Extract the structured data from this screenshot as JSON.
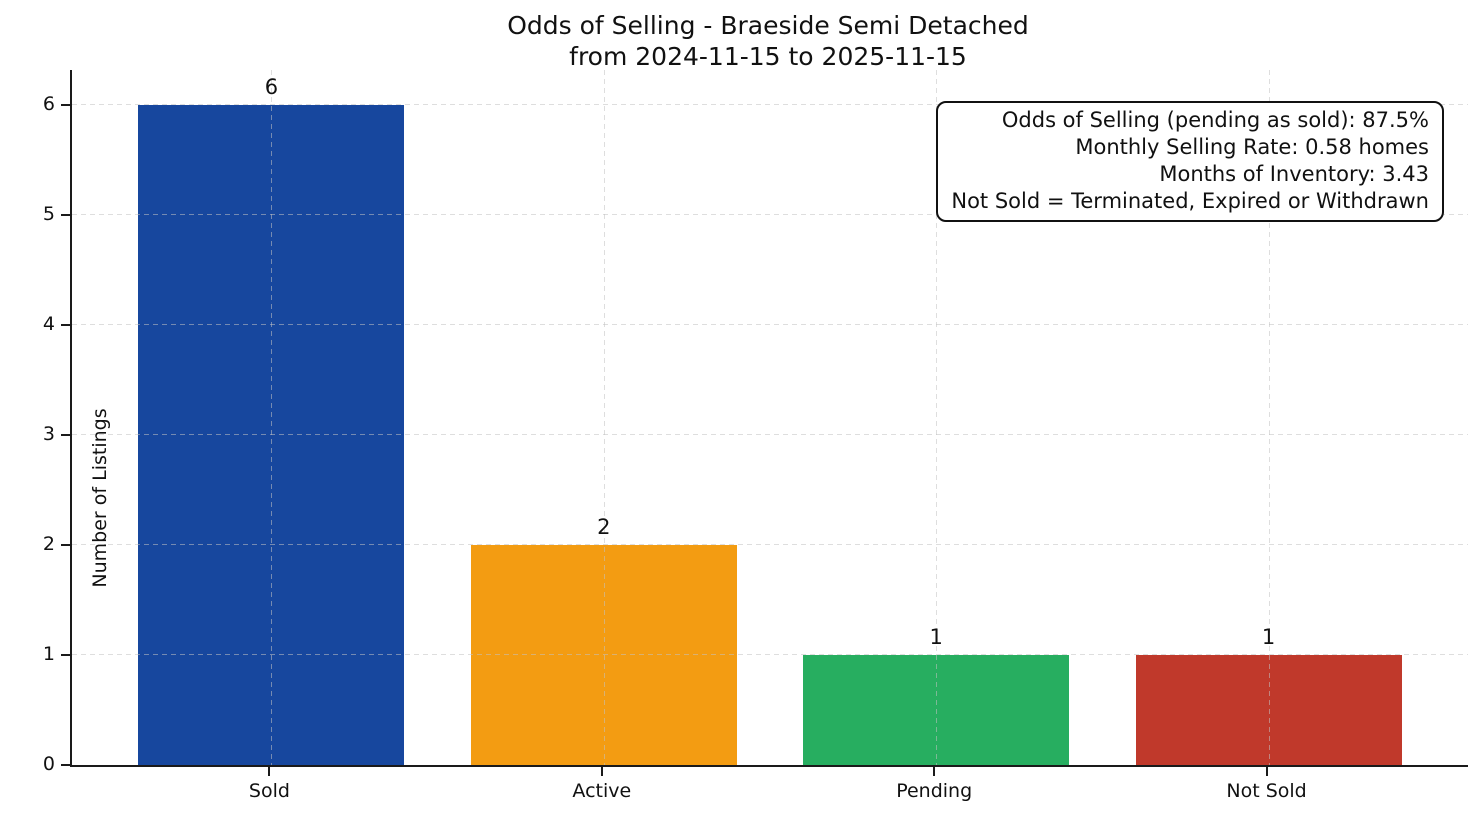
{
  "chart_data": {
    "type": "bar",
    "title": "Odds of Selling - Braeside Semi Detached",
    "subtitle": "from 2024-11-15 to 2025-11-15",
    "xlabel": "",
    "ylabel": "Number of Listings",
    "categories": [
      "Sold",
      "Active",
      "Pending",
      "Not Sold"
    ],
    "values": [
      6,
      2,
      1,
      1
    ],
    "bar_colors": [
      "#17479e",
      "#f39c12",
      "#27ae60",
      "#c0392b"
    ],
    "yticks": [
      0,
      1,
      2,
      3,
      4,
      5,
      6
    ],
    "ylim": [
      0,
      6.32
    ],
    "grid": "dashed-both-axes",
    "legend_position": "none",
    "annotation": {
      "position": "top-right",
      "lines": [
        "Odds of Selling (pending as sold): 87.5%",
        "Monthly Selling Rate: 0.58 homes",
        "Months of Inventory: 3.43",
        "Not Sold = Terminated, Expired or Withdrawn"
      ]
    }
  }
}
